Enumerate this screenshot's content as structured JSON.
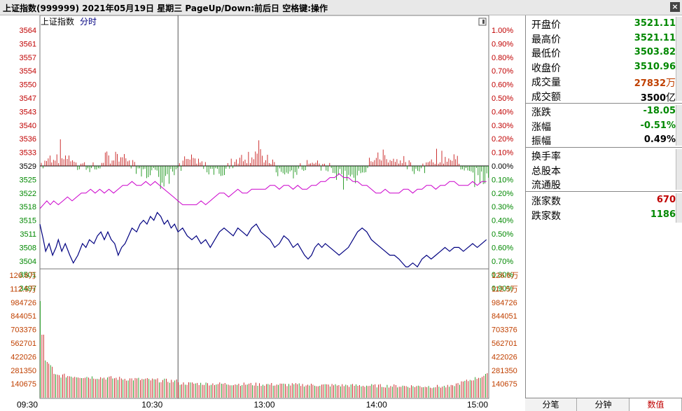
{
  "title": "上证指数(999999)  2021年05月19日  星期三  PageUp/Down:前后日 空格键:操作",
  "chart_header": {
    "name": "上证指数",
    "mode": "分时"
  },
  "colors": {
    "up": "#c00000",
    "down": "#008800",
    "price_line": "#000080",
    "avg_line": "#cc00cc",
    "neutral": "#000000"
  },
  "chart_data": {
    "type": "line",
    "prev_close": 3529,
    "price_ticks": [
      3564,
      3561,
      3557,
      3554,
      3550,
      3547,
      3543,
      3540,
      3536,
      3533,
      3529,
      3525,
      3522,
      3518,
      3515,
      3511,
      3508,
      3504,
      3501,
      3497
    ],
    "pct_ticks": [
      "1.00%",
      "0.90%",
      "0.80%",
      "0.70%",
      "0.60%",
      "0.50%",
      "0.40%",
      "0.30%",
      "0.20%",
      "0.10%",
      "0.00%",
      "0.10%",
      "0.20%",
      "0.30%",
      "0.40%",
      "0.50%",
      "0.60%",
      "0.70%",
      "0.80%",
      "0.90%"
    ],
    "ylim": [
      3496,
      3564
    ],
    "volume_ticks": [
      "126.6万",
      "112.5万",
      "984726",
      "844051",
      "703376",
      "562701",
      "422026",
      "281350",
      "140675"
    ],
    "volume_max": 1266000,
    "time_ticks": [
      "09:30",
      "10:30",
      "13:00",
      "14:00",
      "15:00"
    ],
    "price_series": [
      [
        0,
        3514
      ],
      [
        3,
        3510
      ],
      [
        5,
        3507
      ],
      [
        8,
        3509
      ],
      [
        11,
        3506
      ],
      [
        14,
        3508
      ],
      [
        16,
        3510
      ],
      [
        19,
        3507
      ],
      [
        22,
        3509
      ],
      [
        26,
        3506
      ],
      [
        29,
        3504
      ],
      [
        33,
        3506
      ],
      [
        37,
        3509
      ],
      [
        40,
        3508
      ],
      [
        43,
        3510
      ],
      [
        47,
        3509
      ],
      [
        50,
        3511
      ],
      [
        53,
        3512
      ],
      [
        56,
        3510
      ],
      [
        59,
        3512
      ],
      [
        62,
        3510
      ],
      [
        65,
        3509
      ],
      [
        68,
        3506
      ],
      [
        71,
        3508
      ],
      [
        74,
        3509
      ],
      [
        77,
        3511
      ],
      [
        80,
        3513
      ],
      [
        84,
        3512
      ],
      [
        87,
        3514
      ],
      [
        90,
        3515
      ],
      [
        93,
        3514
      ],
      [
        96,
        3516
      ],
      [
        99,
        3515
      ],
      [
        102,
        3517
      ],
      [
        105,
        3516
      ],
      [
        108,
        3514
      ],
      [
        111,
        3515
      ],
      [
        114,
        3513
      ],
      [
        117,
        3514
      ],
      [
        120,
        3512
      ],
      [
        124,
        3513
      ],
      [
        128,
        3511
      ],
      [
        132,
        3510
      ],
      [
        136,
        3511
      ],
      [
        140,
        3509
      ],
      [
        144,
        3510
      ],
      [
        148,
        3508
      ],
      [
        152,
        3510
      ],
      [
        156,
        3512
      ],
      [
        160,
        3513
      ],
      [
        164,
        3512
      ],
      [
        168,
        3511
      ],
      [
        172,
        3513
      ],
      [
        176,
        3512
      ],
      [
        180,
        3511
      ],
      [
        184,
        3513
      ],
      [
        188,
        3514
      ],
      [
        192,
        3512
      ],
      [
        196,
        3511
      ],
      [
        200,
        3510
      ],
      [
        204,
        3508
      ],
      [
        208,
        3509
      ],
      [
        212,
        3511
      ],
      [
        216,
        3510
      ],
      [
        220,
        3508
      ],
      [
        224,
        3509
      ],
      [
        228,
        3507
      ],
      [
        230,
        3506
      ],
      [
        233,
        3505
      ],
      [
        236,
        3506
      ],
      [
        239,
        3508
      ],
      [
        242,
        3509
      ],
      [
        245,
        3508
      ],
      [
        248,
        3509
      ],
      [
        252,
        3508
      ],
      [
        256,
        3507
      ],
      [
        260,
        3506
      ],
      [
        264,
        3507
      ],
      [
        268,
        3508
      ],
      [
        272,
        3510
      ],
      [
        276,
        3512
      ],
      [
        280,
        3513
      ],
      [
        284,
        3512
      ],
      [
        288,
        3510
      ],
      [
        292,
        3509
      ],
      [
        296,
        3508
      ],
      [
        300,
        3507
      ],
      [
        304,
        3506
      ],
      [
        308,
        3506
      ],
      [
        312,
        3505
      ],
      [
        315,
        3504
      ],
      [
        318,
        3503
      ],
      [
        320,
        3503
      ],
      [
        324,
        3504
      ],
      [
        328,
        3503
      ],
      [
        332,
        3505
      ],
      [
        336,
        3506
      ],
      [
        340,
        3505
      ],
      [
        344,
        3506
      ],
      [
        348,
        3507
      ],
      [
        352,
        3508
      ],
      [
        356,
        3507
      ],
      [
        360,
        3508
      ],
      [
        364,
        3508
      ],
      [
        368,
        3507
      ],
      [
        372,
        3508
      ],
      [
        376,
        3509
      ],
      [
        380,
        3508
      ],
      [
        384,
        3509
      ],
      [
        388,
        3510
      ]
    ],
    "avg_series": [
      [
        0,
        3518
      ],
      [
        3,
        3519
      ],
      [
        6,
        3520
      ],
      [
        9,
        3519
      ],
      [
        12,
        3520
      ],
      [
        16,
        3519
      ],
      [
        20,
        3520
      ],
      [
        24,
        3521
      ],
      [
        28,
        3520
      ],
      [
        32,
        3521
      ],
      [
        36,
        3522
      ],
      [
        40,
        3522
      ],
      [
        44,
        3523
      ],
      [
        48,
        3522
      ],
      [
        52,
        3523
      ],
      [
        56,
        3522
      ],
      [
        60,
        3523
      ],
      [
        64,
        3522
      ],
      [
        68,
        3523
      ],
      [
        72,
        3524
      ],
      [
        76,
        3524
      ],
      [
        80,
        3525
      ],
      [
        84,
        3524
      ],
      [
        88,
        3524
      ],
      [
        92,
        3525
      ],
      [
        96,
        3524
      ],
      [
        100,
        3525
      ],
      [
        104,
        3524
      ],
      [
        108,
        3523
      ],
      [
        112,
        3522
      ],
      [
        116,
        3521
      ],
      [
        120,
        3520
      ],
      [
        124,
        3519
      ],
      [
        128,
        3519
      ],
      [
        132,
        3519
      ],
      [
        136,
        3519
      ],
      [
        140,
        3520
      ],
      [
        144,
        3519
      ],
      [
        148,
        3520
      ],
      [
        152,
        3521
      ],
      [
        156,
        3522
      ],
      [
        160,
        3522
      ],
      [
        164,
        3521
      ],
      [
        168,
        3522
      ],
      [
        172,
        3523
      ],
      [
        176,
        3522
      ],
      [
        180,
        3522
      ],
      [
        184,
        3523
      ],
      [
        188,
        3523
      ],
      [
        192,
        3523
      ],
      [
        196,
        3523
      ],
      [
        200,
        3524
      ],
      [
        204,
        3524
      ],
      [
        208,
        3523
      ],
      [
        212,
        3524
      ],
      [
        216,
        3524
      ],
      [
        220,
        3523
      ],
      [
        224,
        3524
      ],
      [
        228,
        3523
      ],
      [
        232,
        3523
      ],
      [
        236,
        3524
      ],
      [
        240,
        3524
      ],
      [
        244,
        3525
      ],
      [
        248,
        3525
      ],
      [
        252,
        3526
      ],
      [
        256,
        3526
      ],
      [
        260,
        3527
      ],
      [
        264,
        3526
      ],
      [
        268,
        3526
      ],
      [
        272,
        3525
      ],
      [
        276,
        3525
      ],
      [
        280,
        3524
      ],
      [
        284,
        3524
      ],
      [
        288,
        3523
      ],
      [
        292,
        3522
      ],
      [
        296,
        3522
      ],
      [
        300,
        3523
      ],
      [
        304,
        3522
      ],
      [
        308,
        3522
      ],
      [
        312,
        3522
      ],
      [
        316,
        3523
      ],
      [
        320,
        3523
      ],
      [
        324,
        3522
      ],
      [
        328,
        3523
      ],
      [
        332,
        3523
      ],
      [
        336,
        3524
      ],
      [
        340,
        3524
      ],
      [
        344,
        3523
      ],
      [
        348,
        3524
      ],
      [
        352,
        3524
      ],
      [
        356,
        3525
      ],
      [
        360,
        3525
      ],
      [
        364,
        3524
      ],
      [
        368,
        3524
      ],
      [
        372,
        3524
      ],
      [
        376,
        3525
      ],
      [
        380,
        3524
      ],
      [
        384,
        3525
      ],
      [
        388,
        3525
      ]
    ]
  },
  "panel": {
    "rows_a": [
      {
        "label": "开盘价",
        "value": "3521.11",
        "color": "#008800"
      },
      {
        "label": "最高价",
        "value": "3521.11",
        "color": "#008800"
      },
      {
        "label": "最低价",
        "value": "3503.82",
        "color": "#008800"
      },
      {
        "label": "收盘价",
        "value": "3510.96",
        "color": "#008800"
      },
      {
        "label": "成交量",
        "value": "27832",
        "unit": "万",
        "color": "#c04000"
      },
      {
        "label": "成交额",
        "value": "3500",
        "unit": "亿",
        "color": "#000000"
      }
    ],
    "rows_b": [
      {
        "label": "涨跌",
        "value": "-18.05",
        "color": "#008800"
      },
      {
        "label": "涨幅",
        "value": "-0.51%",
        "color": "#008800"
      },
      {
        "label": "振幅",
        "value": "0.49%",
        "color": "#000000"
      }
    ],
    "rows_c": [
      {
        "label": "换手率",
        "value": ""
      },
      {
        "label": "总股本",
        "value": ""
      },
      {
        "label": "流通股",
        "value": ""
      }
    ],
    "rows_d": [
      {
        "label": "涨家数",
        "value": "670",
        "color": "#c00000"
      },
      {
        "label": "跌家数",
        "value": "1186",
        "color": "#008800"
      }
    ]
  },
  "tabs": [
    {
      "label": "分笔",
      "active": false
    },
    {
      "label": "分钟",
      "active": false
    },
    {
      "label": "数值",
      "active": true
    }
  ]
}
